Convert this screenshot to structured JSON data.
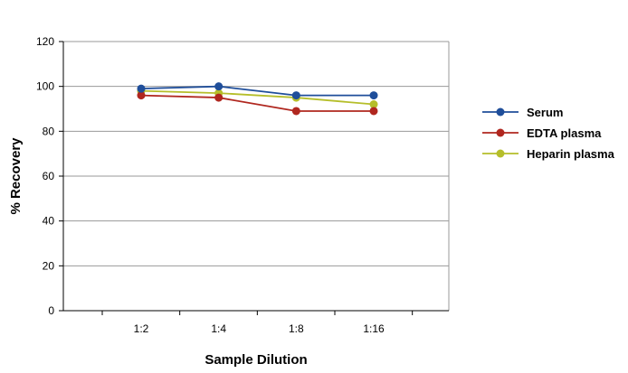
{
  "chart_data": {
    "type": "line",
    "title": "",
    "xlabel": "Sample Dilution",
    "ylabel": "% Recovery",
    "categories": [
      "1:2",
      "1:4",
      "1:8",
      "1:16"
    ],
    "ylim": [
      0,
      120
    ],
    "yticks": [
      0,
      20,
      40,
      60,
      80,
      100,
      120
    ],
    "grid": true,
    "legend": "right",
    "series": [
      {
        "name": "Serum",
        "color": "#1f4e9a",
        "values": [
          99,
          100,
          96,
          96
        ]
      },
      {
        "name": "EDTA plasma",
        "color": "#b0271f",
        "values": [
          96,
          95,
          89,
          89
        ]
      },
      {
        "name": "Heparin plasma",
        "color": "#b5be2a",
        "values": [
          98,
          97,
          95,
          92
        ]
      }
    ]
  }
}
